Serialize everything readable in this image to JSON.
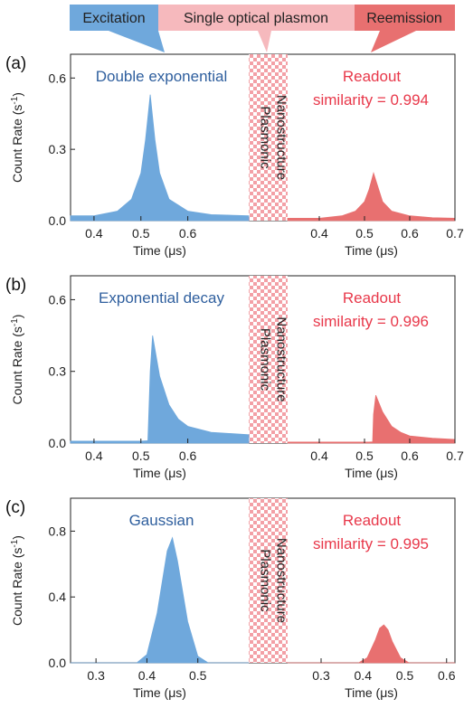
{
  "banner": {
    "excitation": "Excitation",
    "plasmon": "Single optical plasmon",
    "reemission": "Reemission"
  },
  "structure_label": [
    "Plasmonic",
    "Nanostructure"
  ],
  "colors": {
    "excitation": "#6fa8dc",
    "excitation_text": "#2f5f9e",
    "reemission": "#e87070",
    "readout_text": "#e8384a",
    "plasmon": "#f6b9bd",
    "checker": "#f3a0a6"
  },
  "chart_data": [
    {
      "type": "area",
      "panel_label": "(a)",
      "ylabel": "Count Rate (s-1)",
      "ylim": [
        0,
        0.7
      ],
      "yticks": [
        0.0,
        0.3,
        0.6
      ],
      "excitation": {
        "name": "Double exponential",
        "xlabel": "Time (μs)",
        "xlim": [
          0.35,
          0.73
        ],
        "xticks": [
          0.4,
          0.5,
          0.6
        ],
        "x": [
          0.35,
          0.4,
          0.45,
          0.48,
          0.5,
          0.51,
          0.52,
          0.53,
          0.54,
          0.56,
          0.6,
          0.65,
          0.73
        ],
        "y": [
          0.02,
          0.02,
          0.04,
          0.09,
          0.2,
          0.34,
          0.53,
          0.34,
          0.2,
          0.09,
          0.04,
          0.025,
          0.02
        ]
      },
      "readout": {
        "name": "Readout",
        "annotation": "similarity = 0.994",
        "xlabel": "Time (μs)",
        "xlim": [
          0.33,
          0.7
        ],
        "xticks": [
          0.4,
          0.5,
          0.6,
          0.7
        ],
        "x": [
          0.33,
          0.4,
          0.45,
          0.48,
          0.5,
          0.51,
          0.52,
          0.53,
          0.54,
          0.56,
          0.6,
          0.65,
          0.7
        ],
        "y": [
          0.01,
          0.01,
          0.02,
          0.04,
          0.08,
          0.13,
          0.2,
          0.14,
          0.08,
          0.04,
          0.02,
          0.012,
          0.01
        ]
      }
    },
    {
      "type": "area",
      "panel_label": "(b)",
      "ylabel": "Count Rate (s-1)",
      "ylim": [
        0,
        0.7
      ],
      "yticks": [
        0.0,
        0.3,
        0.6
      ],
      "excitation": {
        "name": "Exponential decay",
        "xlabel": "Time (μs)",
        "xlim": [
          0.35,
          0.73
        ],
        "xticks": [
          0.4,
          0.5,
          0.6
        ],
        "x": [
          0.35,
          0.5,
          0.515,
          0.52,
          0.525,
          0.54,
          0.56,
          0.58,
          0.6,
          0.65,
          0.73
        ],
        "y": [
          0.008,
          0.008,
          0.01,
          0.3,
          0.45,
          0.28,
          0.16,
          0.1,
          0.07,
          0.045,
          0.035
        ]
      },
      "readout": {
        "name": "Readout",
        "annotation": "similarity = 0.996",
        "xlabel": "Time (μs)",
        "xlim": [
          0.33,
          0.7
        ],
        "xticks": [
          0.4,
          0.5,
          0.6,
          0.7
        ],
        "x": [
          0.33,
          0.51,
          0.518,
          0.52,
          0.525,
          0.54,
          0.56,
          0.58,
          0.6,
          0.65,
          0.7
        ],
        "y": [
          0.004,
          0.004,
          0.005,
          0.12,
          0.2,
          0.13,
          0.07,
          0.045,
          0.03,
          0.02,
          0.015
        ]
      }
    },
    {
      "type": "area",
      "panel_label": "(c)",
      "ylabel": "Count Rate (s-1)",
      "ylim": [
        0,
        1.0
      ],
      "yticks": [
        0.0,
        0.4,
        0.8
      ],
      "excitation": {
        "name": "Gaussian",
        "xlabel": "Time (μs)",
        "xlim": [
          0.25,
          0.6
        ],
        "xticks": [
          0.3,
          0.4,
          0.5
        ],
        "x": [
          0.25,
          0.38,
          0.4,
          0.42,
          0.44,
          0.45,
          0.46,
          0.48,
          0.5,
          0.52,
          0.6
        ],
        "y": [
          0.0,
          0.0,
          0.05,
          0.3,
          0.68,
          0.76,
          0.62,
          0.25,
          0.04,
          0.0,
          0.0
        ]
      },
      "readout": {
        "name": "Readout",
        "annotation": "similarity = 0.995",
        "xlabel": "Time (μs)",
        "xlim": [
          0.22,
          0.62
        ],
        "xticks": [
          0.3,
          0.4,
          0.5,
          0.6
        ],
        "x": [
          0.22,
          0.39,
          0.41,
          0.43,
          0.44,
          0.45,
          0.46,
          0.47,
          0.49,
          0.51,
          0.62
        ],
        "y": [
          0.0,
          0.0,
          0.03,
          0.14,
          0.21,
          0.23,
          0.2,
          0.13,
          0.03,
          0.0,
          0.0
        ]
      }
    }
  ]
}
